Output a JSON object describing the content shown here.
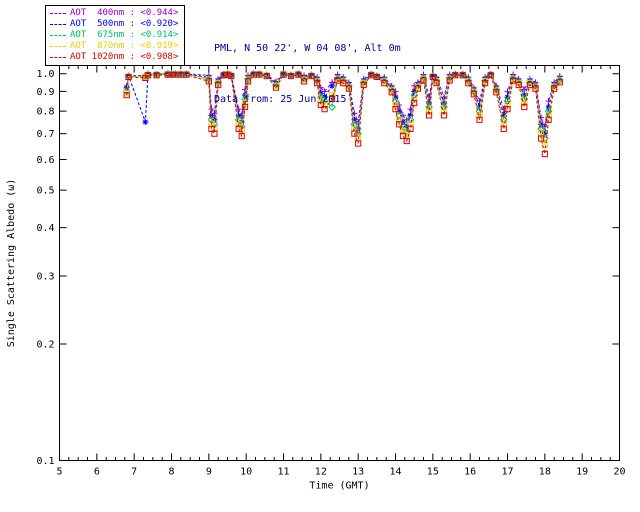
{
  "header": {
    "station_line": "PML, N 50 22', W 04 08', Alt 0m",
    "date_line": "Data from: 25 Jun 2015",
    "text_color": "#000090"
  },
  "legend": {
    "items": [
      {
        "label": "AOT  400nm : <0.944>",
        "color": "#9400d3"
      },
      {
        "label": "AOT  500nm : <0.920>",
        "color": "#0000ee"
      },
      {
        "label": "AOT  675nm : <0.914>",
        "color": "#00c060"
      },
      {
        "label": "AOT  870nm : <0.919>",
        "color": "#e8d000"
      },
      {
        "label": "AOT 1020nm : <0.908>",
        "color": "#e00000"
      }
    ]
  },
  "chart_data": {
    "type": "line",
    "title": "",
    "xlabel": "Time (GMT)",
    "ylabel": "Single Scattering Albedo (ω)",
    "xlim": [
      5,
      20
    ],
    "ylim": [
      0.1,
      1.05
    ],
    "yscale": "log",
    "grid": false,
    "legend_position": "top-left",
    "xticks": [
      5,
      6,
      7,
      8,
      9,
      10,
      11,
      12,
      13,
      14,
      15,
      16,
      17,
      18,
      19,
      20
    ],
    "yticks": [
      1.0,
      0.9,
      0.8,
      0.7,
      0.6,
      0.5,
      0.4,
      0.3,
      0.2,
      0.1
    ],
    "x": [
      6.8,
      6.85,
      7.3,
      7.37,
      7.6,
      7.9,
      8.0,
      8.1,
      8.25,
      8.4,
      9.0,
      9.07,
      9.15,
      9.25,
      9.4,
      9.5,
      9.6,
      9.8,
      9.88,
      9.97,
      10.05,
      10.2,
      10.35,
      10.55,
      10.8,
      11.0,
      11.2,
      11.4,
      11.55,
      11.75,
      11.9,
      12.0,
      12.1,
      12.3,
      12.45,
      12.6,
      12.75,
      12.9,
      13.0,
      13.15,
      13.35,
      13.5,
      13.7,
      13.9,
      14.0,
      14.1,
      14.2,
      14.3,
      14.4,
      14.5,
      14.6,
      14.75,
      14.9,
      15.0,
      15.1,
      15.3,
      15.45,
      15.6,
      15.8,
      15.95,
      16.1,
      16.25,
      16.4,
      16.55,
      16.7,
      16.9,
      17.0,
      17.15,
      17.3,
      17.45,
      17.6,
      17.75,
      17.9,
      18.0,
      18.1,
      18.25,
      18.4
    ],
    "series": [
      {
        "name": "AOT 400nm",
        "mean": "<0.944>",
        "color": "#9400d3",
        "marker": "plus",
        "values": [
          0.93,
          0.989,
          0.99,
          0.999,
          0.999,
          1.0,
          1.0,
          1.0,
          1.0,
          1.0,
          0.99,
          0.81,
          0.79,
          0.97,
          0.999,
          1.0,
          0.994,
          0.81,
          0.78,
          0.91,
          0.99,
          1.0,
          1.0,
          0.994,
          0.955,
          1.0,
          0.994,
          1.0,
          0.99,
          0.994,
          0.98,
          0.92,
          0.9,
          0.95,
          0.995,
          0.98,
          0.95,
          0.79,
          0.75,
          0.97,
          0.999,
          0.989,
          0.98,
          0.93,
          0.9,
          0.83,
          0.78,
          0.76,
          0.81,
          0.93,
          0.95,
          0.995,
          0.87,
          0.989,
          0.98,
          0.87,
          0.995,
          0.999,
          0.999,
          0.98,
          0.92,
          0.85,
          0.98,
          0.999,
          0.93,
          0.81,
          0.9,
          0.995,
          0.97,
          0.91,
          0.97,
          0.95,
          0.77,
          0.73,
          0.85,
          0.95,
          0.985
        ]
      },
      {
        "name": "AOT 500nm",
        "mean": "<0.920>",
        "color": "#0000ee",
        "marker": "asterisk",
        "values": [
          0.92,
          0.987,
          0.75,
          0.997,
          0.997,
          1.0,
          1.0,
          1.0,
          1.0,
          1.0,
          0.978,
          0.78,
          0.76,
          0.958,
          0.997,
          1.0,
          0.992,
          0.78,
          0.75,
          0.88,
          0.978,
          1.0,
          1.0,
          0.992,
          0.943,
          1.0,
          0.992,
          1.0,
          0.978,
          0.992,
          0.968,
          0.89,
          0.87,
          0.93,
          0.983,
          0.968,
          0.938,
          0.76,
          0.72,
          0.958,
          0.997,
          0.987,
          0.968,
          0.918,
          0.87,
          0.8,
          0.75,
          0.73,
          0.78,
          0.9,
          0.938,
          0.983,
          0.84,
          0.987,
          0.968,
          0.84,
          0.983,
          0.997,
          0.997,
          0.968,
          0.908,
          0.82,
          0.968,
          0.997,
          0.918,
          0.78,
          0.87,
          0.983,
          0.958,
          0.88,
          0.958,
          0.938,
          0.74,
          0.7,
          0.82,
          0.938,
          0.973
        ]
      },
      {
        "name": "AOT 675nm",
        "mean": "<0.914>",
        "color": "#00c060",
        "marker": "diamond",
        "values": [
          0.9,
          0.985,
          0.985,
          0.995,
          0.995,
          0.998,
          0.998,
          0.998,
          0.998,
          0.998,
          0.97,
          0.76,
          0.74,
          0.95,
          0.995,
          0.998,
          0.99,
          0.76,
          0.73,
          0.86,
          0.97,
          0.998,
          0.998,
          0.99,
          0.935,
          0.998,
          0.99,
          0.998,
          0.97,
          0.99,
          0.96,
          0.87,
          0.85,
          0.82,
          0.975,
          0.96,
          0.93,
          0.74,
          0.7,
          0.95,
          0.995,
          0.985,
          0.96,
          0.91,
          0.85,
          0.78,
          0.73,
          0.71,
          0.76,
          0.88,
          0.93,
          0.975,
          0.82,
          0.985,
          0.96,
          0.82,
          0.975,
          0.995,
          0.995,
          0.96,
          0.9,
          0.8,
          0.96,
          0.995,
          0.91,
          0.76,
          0.85,
          0.975,
          0.95,
          0.86,
          0.95,
          0.93,
          0.72,
          0.68,
          0.8,
          0.93,
          0.965
        ]
      },
      {
        "name": "AOT 870nm",
        "mean": "<0.919>",
        "color": "#e8d000",
        "marker": "square",
        "values": [
          0.89,
          0.983,
          0.98,
          0.993,
          0.993,
          0.996,
          0.996,
          0.996,
          0.996,
          0.996,
          0.965,
          0.74,
          0.72,
          0.945,
          0.993,
          0.996,
          0.988,
          0.74,
          0.71,
          0.84,
          0.965,
          0.996,
          0.996,
          0.988,
          0.93,
          0.996,
          0.988,
          0.996,
          0.965,
          0.988,
          0.955,
          0.85,
          0.83,
          0.88,
          0.97,
          0.955,
          0.925,
          0.72,
          0.68,
          0.945,
          0.993,
          0.983,
          0.955,
          0.905,
          0.83,
          0.76,
          0.71,
          0.69,
          0.74,
          0.86,
          0.925,
          0.97,
          0.8,
          0.983,
          0.955,
          0.8,
          0.97,
          0.993,
          0.993,
          0.955,
          0.895,
          0.78,
          0.955,
          0.993,
          0.905,
          0.74,
          0.83,
          0.97,
          0.945,
          0.84,
          0.945,
          0.925,
          0.7,
          0.655,
          0.78,
          0.925,
          0.96
        ]
      },
      {
        "name": "AOT 1020nm",
        "mean": "<0.908>",
        "color": "#e00000",
        "marker": "square",
        "values": [
          0.88,
          0.981,
          0.975,
          0.991,
          0.991,
          0.994,
          0.994,
          0.994,
          0.994,
          0.994,
          0.955,
          0.72,
          0.7,
          0.935,
          0.991,
          0.994,
          0.986,
          0.72,
          0.69,
          0.82,
          0.955,
          0.994,
          0.994,
          0.986,
          0.92,
          0.994,
          0.986,
          0.994,
          0.955,
          0.986,
          0.945,
          0.83,
          0.81,
          0.86,
          0.96,
          0.945,
          0.915,
          0.7,
          0.66,
          0.935,
          0.991,
          0.981,
          0.945,
          0.895,
          0.81,
          0.74,
          0.69,
          0.67,
          0.72,
          0.84,
          0.915,
          0.96,
          0.78,
          0.981,
          0.945,
          0.78,
          0.96,
          0.991,
          0.991,
          0.945,
          0.885,
          0.76,
          0.945,
          0.991,
          0.895,
          0.72,
          0.81,
          0.96,
          0.935,
          0.82,
          0.935,
          0.915,
          0.68,
          0.62,
          0.76,
          0.915,
          0.95
        ]
      }
    ]
  }
}
